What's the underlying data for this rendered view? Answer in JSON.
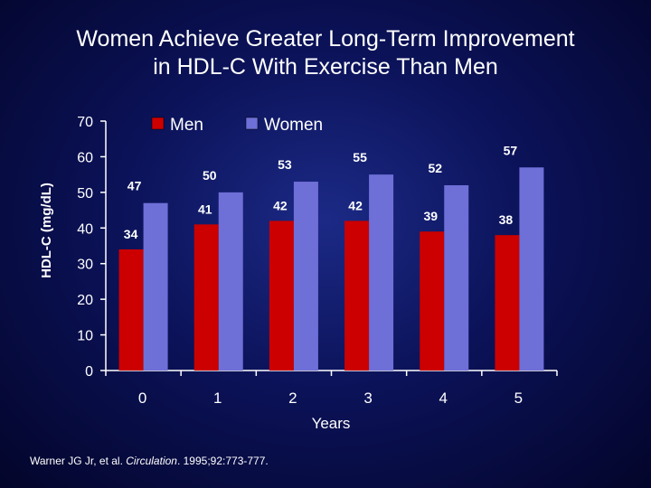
{
  "title": {
    "line1": "Women Achieve Greater Long-Term Improvement",
    "line2": "in HDL-C With Exercise Than Men"
  },
  "citation": {
    "authors": "Warner JG Jr, et al.",
    "journal": "Circulation",
    "details": ". 1995;92:773-777."
  },
  "chart_data": {
    "type": "bar",
    "title": "",
    "xlabel": "Years",
    "ylabel": "HDL-C (mg/dL)",
    "categories": [
      "0",
      "1",
      "2",
      "3",
      "4",
      "5"
    ],
    "ylim": [
      0,
      70
    ],
    "yticks": [
      0,
      10,
      20,
      30,
      40,
      50,
      60,
      70
    ],
    "legend_position": "top",
    "series": [
      {
        "name": "Men",
        "color": "#cc0000",
        "values": [
          34,
          41,
          42,
          42,
          39,
          38
        ]
      },
      {
        "name": "Women",
        "color": "#6f6fd8",
        "values": [
          47,
          50,
          53,
          55,
          52,
          57
        ]
      }
    ]
  }
}
